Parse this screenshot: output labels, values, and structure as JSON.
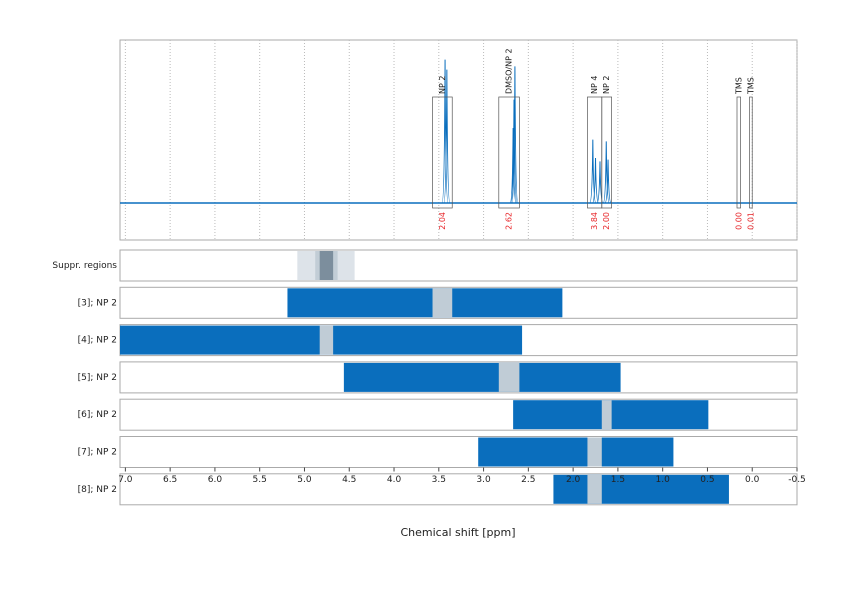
{
  "chart_data": {
    "type": "nmr",
    "x_label": "Chemical shift [ppm]",
    "xlim": [
      7.06,
      -0.5
    ],
    "xticks": [
      {
        "value": 7,
        "label": "7.0"
      },
      6.5,
      {
        "value": 6,
        "label": "6.0"
      },
      5.5,
      {
        "value": 5,
        "label": "5.0"
      },
      4.5,
      {
        "value": 4,
        "label": "4.0"
      },
      3.5,
      {
        "value": 3,
        "label": "3.0"
      },
      2.5,
      {
        "value": 2,
        "label": "2.0"
      },
      1.5,
      {
        "value": 1,
        "label": "1.0"
      },
      0.5,
      {
        "value": 0,
        "label": "0.0"
      },
      -0.5
    ],
    "grid": true,
    "color": "#0a6ebd",
    "ylim": [
      -0.2,
      1.0
    ],
    "peaks": [
      [
        3.43,
        0.86
      ],
      [
        3.41,
        0.8
      ],
      [
        2.67,
        0.45
      ],
      [
        2.66,
        0.62
      ],
      [
        2.65,
        0.82
      ],
      [
        1.78,
        0.38
      ],
      [
        1.75,
        0.27
      ],
      [
        1.7,
        0.25
      ],
      [
        1.63,
        0.37
      ],
      [
        1.61,
        0.26
      ]
    ],
    "regions": {
      "labels": [
        "NP 2",
        "DMSO/NP 2",
        "NP 4",
        "NP 2",
        "TMS",
        "TMS"
      ],
      "ranges": [
        [
          3.57,
          3.35
        ],
        [
          2.83,
          2.6
        ],
        [
          1.84,
          1.68
        ],
        [
          1.68,
          1.57
        ],
        [
          0.17,
          0.13
        ],
        [
          0.03,
          0.0
        ]
      ],
      "values": [
        2.04,
        2.62,
        3.84,
        2,
        0,
        0.01
      ],
      "value_labels": [
        "2.04",
        "2.62",
        "3.84",
        "2.00",
        "0.00",
        "0.01"
      ],
      "integral_color": "#e8262a"
    },
    "suppression": {
      "label": "Suppr. regions",
      "ranges": [
        [
          5.08,
          4.44
        ],
        [
          4.88,
          4.63
        ],
        [
          4.83,
          4.68
        ]
      ],
      "colors": [
        "#dde3e9",
        "#c2cdd6",
        "#7c8e9d"
      ]
    },
    "gap_color": "#c0ccd6",
    "rows": [
      {
        "label": "[3]; NP 2",
        "range": [
          5.19,
          2.12
        ],
        "gap": [
          3.57,
          3.35
        ]
      },
      {
        "label": "[4]; NP 2",
        "range": [
          7.06,
          2.57
        ],
        "gap": [
          4.83,
          4.68
        ]
      },
      {
        "label": "[5]; NP 2",
        "range": [
          4.56,
          1.47
        ],
        "gap": [
          2.83,
          2.6
        ]
      },
      {
        "label": "[6]; NP 2",
        "range": [
          2.67,
          0.49
        ],
        "gap": [
          1.68,
          1.57
        ]
      },
      {
        "label": "[7]; NP 2",
        "range": [
          3.06,
          0.88
        ],
        "gap": [
          1.84,
          1.68
        ]
      },
      {
        "label": "[8]; NP 2",
        "range": [
          2.22,
          0.26
        ],
        "gap": [
          1.84,
          1.68
        ]
      }
    ]
  }
}
